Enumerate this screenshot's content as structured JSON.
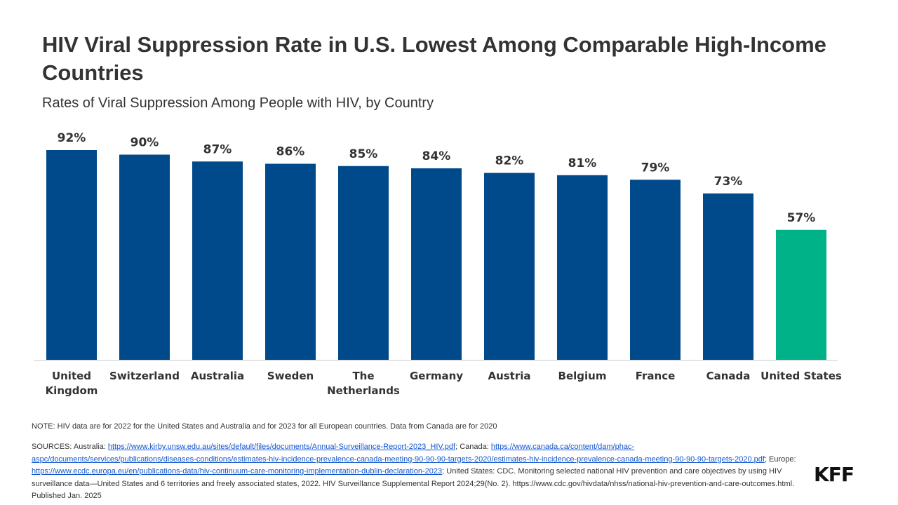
{
  "header": {
    "title": "HIV Viral Suppression Rate in U.S. Lowest Among Comparable High-Income Countries",
    "subtitle": "Rates of Viral Suppression Among People with HIV, by Country"
  },
  "chart_data": {
    "type": "bar",
    "title": "HIV Viral Suppression Rate in U.S. Lowest Among Comparable High-Income Countries",
    "subtitle": "Rates of Viral Suppression Among People with HIV, by Country",
    "categories": [
      [
        "United",
        "Kingdom"
      ],
      [
        "Switzerland"
      ],
      [
        "Australia"
      ],
      [
        "Sweden"
      ],
      [
        "The",
        "Netherlands"
      ],
      [
        "Germany"
      ],
      [
        "Austria"
      ],
      [
        "Belgium"
      ],
      [
        "France"
      ],
      [
        "Canada"
      ],
      [
        "United States"
      ]
    ],
    "values": [
      92,
      90,
      87,
      86,
      85,
      84,
      82,
      81,
      79,
      73,
      57
    ],
    "value_labels": [
      "92%",
      "90%",
      "87%",
      "86%",
      "85%",
      "84%",
      "82%",
      "81%",
      "79%",
      "73%",
      "57%"
    ],
    "colors": [
      "#00498a",
      "#00498a",
      "#00498a",
      "#00498a",
      "#00498a",
      "#00498a",
      "#00498a",
      "#00498a",
      "#00498a",
      "#00498a",
      "#00b287"
    ],
    "axis_color": "#cccccc",
    "ylim": [
      0,
      100
    ],
    "grid": false,
    "xlabel": "",
    "ylabel": ""
  },
  "footer": {
    "note": "NOTE: HIV data are for 2022 for the United States and Australia and for 2023 for all European countries. Data from Canada are for 2020",
    "sources_prefix": "SOURCES: Australia: ",
    "link_australia": "https://www.kirby.unsw.edu.au/sites/default/files/documents/Annual-Surveillance-Report-2023_HIV.pdf",
    "canada_label": "; Canada: ",
    "link_canada": "https://www.canada.ca/content/dam/phac-aspc/documents/services/publications/diseases-conditions/estimates-hiv-incidence-prevalence-canada-meeting-90-90-90-targets-2020/estimates-hiv-incidence-prevalence-canada-meeting-90-90-90-targets-2020.pdf",
    "europe_label": "; Europe: ",
    "link_europe": "https://www.ecdc.europa.eu/en/publications-data/hiv-continuum-care-monitoring-implementation-dublin-declaration-2023",
    "us_text": "; United States: CDC. Monitoring selected national HIV prevention and care objectives by using HIV surveillance data—United States and 6 territories and freely associated states, 2022. HIV Surveillance Supplemental Report 2024;29(No. 2). https://www.cdc.gov/hivdata/nhss/national-hiv-prevention-and-care-outcomes.html. Published Jan. 2025",
    "logo": "KFF"
  }
}
